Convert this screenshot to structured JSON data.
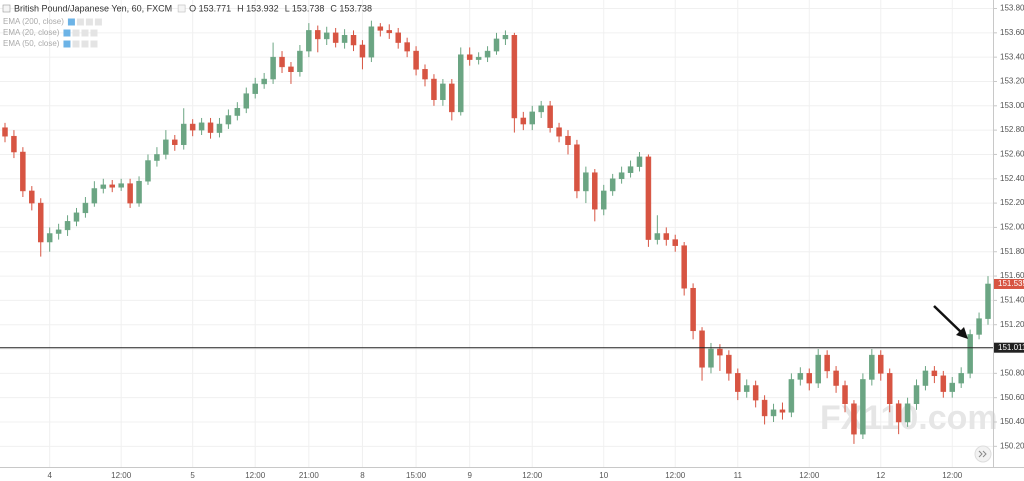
{
  "chart_data": {
    "type": "candlestick",
    "title": "British Pound/Japanese Yen, 60, FXCM",
    "header_values": [
      "O 153.771",
      "H 153.932",
      "L 153.738",
      "C 153.738"
    ],
    "indicators": [
      "EMA (200, close)",
      "EMA (20, close)",
      "EMA (50, close)"
    ],
    "watermark": "FX110.com",
    "up_color": "#6ba583",
    "down_color": "#d75442",
    "grid": true,
    "categories": [
      null,
      null,
      null,
      null,
      null,
      "4",
      null,
      null,
      null,
      null,
      null,
      null,
      null,
      "12:00",
      null,
      null,
      null,
      null,
      null,
      null,
      null,
      "5",
      null,
      null,
      null,
      null,
      null,
      null,
      "12:00",
      null,
      null,
      null,
      null,
      null,
      "21:00",
      null,
      null,
      null,
      null,
      null,
      "8",
      null,
      null,
      null,
      null,
      null,
      "15:00",
      null,
      null,
      null,
      null,
      null,
      "9",
      null,
      null,
      null,
      null,
      null,
      null,
      "12:00",
      null,
      null,
      null,
      null,
      null,
      null,
      null,
      "10",
      null,
      null,
      null,
      null,
      null,
      null,
      null,
      "12:00",
      null,
      null,
      null,
      null,
      null,
      null,
      "11",
      null,
      null,
      null,
      null,
      null,
      null,
      null,
      "12:00",
      null,
      null,
      null,
      null,
      null,
      null,
      null,
      "12",
      null,
      null,
      null,
      null,
      null,
      null,
      null,
      "12:00",
      null,
      null,
      null,
      null
    ],
    "ohlc": [
      [
        152.82,
        152.86,
        152.7,
        152.75
      ],
      [
        152.75,
        152.8,
        152.57,
        152.62
      ],
      [
        152.62,
        152.66,
        152.25,
        152.3
      ],
      [
        152.3,
        152.34,
        152.14,
        152.2
      ],
      [
        152.2,
        152.24,
        151.76,
        151.88
      ],
      [
        151.88,
        152.0,
        151.8,
        151.95
      ],
      [
        151.95,
        152.03,
        151.9,
        151.98
      ],
      [
        151.98,
        152.1,
        151.93,
        152.05
      ],
      [
        152.05,
        152.16,
        152.01,
        152.12
      ],
      [
        152.12,
        152.25,
        152.08,
        152.2
      ],
      [
        152.2,
        152.38,
        152.17,
        152.32
      ],
      [
        152.32,
        152.4,
        152.28,
        152.35
      ],
      [
        152.35,
        152.39,
        152.29,
        152.33
      ],
      [
        152.33,
        152.4,
        152.3,
        152.36
      ],
      [
        152.36,
        152.4,
        152.16,
        152.2
      ],
      [
        152.2,
        152.42,
        152.17,
        152.38
      ],
      [
        152.38,
        152.6,
        152.35,
        152.55
      ],
      [
        152.55,
        152.66,
        152.5,
        152.6
      ],
      [
        152.6,
        152.8,
        152.56,
        152.72
      ],
      [
        152.72,
        152.76,
        152.63,
        152.68
      ],
      [
        152.68,
        152.98,
        152.64,
        152.85
      ],
      [
        152.85,
        152.89,
        152.75,
        152.8
      ],
      [
        152.8,
        152.9,
        152.76,
        152.86
      ],
      [
        152.86,
        152.9,
        152.73,
        152.78
      ],
      [
        152.78,
        152.9,
        152.74,
        152.85
      ],
      [
        152.85,
        152.97,
        152.81,
        152.92
      ],
      [
        152.92,
        153.03,
        152.88,
        152.98
      ],
      [
        152.98,
        153.15,
        152.94,
        153.1
      ],
      [
        153.1,
        153.23,
        153.06,
        153.18
      ],
      [
        153.18,
        153.27,
        153.14,
        153.22
      ],
      [
        153.22,
        153.52,
        153.18,
        153.4
      ],
      [
        153.4,
        153.45,
        153.27,
        153.32
      ],
      [
        153.32,
        153.36,
        153.18,
        153.28
      ],
      [
        153.28,
        153.5,
        153.24,
        153.45
      ],
      [
        153.45,
        153.68,
        153.4,
        153.62
      ],
      [
        153.62,
        153.66,
        153.44,
        153.55
      ],
      [
        153.55,
        153.65,
        153.5,
        153.6
      ],
      [
        153.6,
        153.64,
        153.48,
        153.52
      ],
      [
        153.52,
        153.63,
        153.47,
        153.58
      ],
      [
        153.58,
        153.62,
        153.45,
        153.5
      ],
      [
        153.5,
        153.54,
        153.3,
        153.4
      ],
      [
        153.4,
        153.7,
        153.36,
        153.65
      ],
      [
        153.65,
        153.68,
        153.57,
        153.62
      ],
      [
        153.62,
        153.67,
        153.55,
        153.6
      ],
      [
        153.6,
        153.64,
        153.47,
        153.52
      ],
      [
        153.52,
        153.56,
        153.4,
        153.45
      ],
      [
        153.45,
        153.49,
        153.25,
        153.3
      ],
      [
        153.3,
        153.34,
        153.16,
        153.22
      ],
      [
        153.22,
        153.26,
        153.0,
        153.05
      ],
      [
        153.05,
        153.22,
        153.0,
        153.18
      ],
      [
        153.18,
        153.22,
        152.88,
        152.95
      ],
      [
        152.95,
        153.48,
        152.92,
        153.42
      ],
      [
        153.42,
        153.48,
        153.33,
        153.38
      ],
      [
        153.38,
        153.44,
        153.34,
        153.4
      ],
      [
        153.4,
        153.49,
        153.36,
        153.45
      ],
      [
        153.45,
        153.6,
        153.42,
        153.55
      ],
      [
        153.55,
        153.62,
        153.5,
        153.58
      ],
      [
        153.58,
        153.6,
        152.78,
        152.9
      ],
      [
        152.9,
        152.95,
        152.8,
        152.85
      ],
      [
        152.85,
        153.0,
        152.8,
        152.95
      ],
      [
        152.95,
        153.04,
        152.9,
        153.0
      ],
      [
        153.0,
        153.04,
        152.78,
        152.82
      ],
      [
        152.82,
        152.86,
        152.7,
        152.75
      ],
      [
        152.75,
        152.8,
        152.6,
        152.68
      ],
      [
        152.68,
        152.72,
        152.24,
        152.3
      ],
      [
        152.3,
        152.5,
        152.2,
        152.45
      ],
      [
        152.45,
        152.48,
        152.05,
        152.15
      ],
      [
        152.15,
        152.35,
        152.1,
        152.3
      ],
      [
        152.3,
        152.44,
        152.26,
        152.4
      ],
      [
        152.4,
        152.5,
        152.36,
        152.45
      ],
      [
        152.45,
        152.55,
        152.41,
        152.5
      ],
      [
        152.5,
        152.62,
        152.46,
        152.58
      ],
      [
        152.58,
        152.6,
        151.84,
        151.9
      ],
      [
        151.9,
        152.1,
        151.86,
        151.95
      ],
      [
        151.95,
        152.0,
        151.85,
        151.9
      ],
      [
        151.9,
        151.94,
        151.8,
        151.85
      ],
      [
        151.85,
        151.88,
        151.44,
        151.5
      ],
      [
        151.5,
        151.54,
        151.08,
        151.15
      ],
      [
        151.15,
        151.18,
        150.74,
        150.85
      ],
      [
        150.85,
        151.05,
        150.8,
        151.0
      ],
      [
        151.0,
        151.04,
        150.82,
        150.95
      ],
      [
        150.95,
        150.99,
        150.74,
        150.8
      ],
      [
        150.8,
        150.84,
        150.58,
        150.65
      ],
      [
        150.65,
        150.75,
        150.6,
        150.7
      ],
      [
        150.7,
        150.74,
        150.52,
        150.58
      ],
      [
        150.58,
        150.62,
        150.38,
        150.45
      ],
      [
        150.45,
        150.55,
        150.4,
        150.5
      ],
      [
        150.5,
        150.56,
        150.42,
        150.48
      ],
      [
        150.48,
        150.8,
        150.44,
        150.75
      ],
      [
        150.75,
        150.85,
        150.7,
        150.8
      ],
      [
        150.8,
        150.84,
        150.66,
        150.72
      ],
      [
        150.72,
        151.0,
        150.68,
        150.95
      ],
      [
        150.95,
        150.99,
        150.76,
        150.82
      ],
      [
        150.82,
        150.86,
        150.64,
        150.7
      ],
      [
        150.7,
        150.74,
        150.48,
        150.55
      ],
      [
        150.55,
        150.58,
        150.22,
        150.3
      ],
      [
        150.3,
        150.8,
        150.26,
        150.75
      ],
      [
        150.75,
        151.0,
        150.7,
        150.95
      ],
      [
        150.95,
        150.99,
        150.74,
        150.8
      ],
      [
        150.8,
        150.84,
        150.48,
        150.55
      ],
      [
        150.55,
        150.58,
        150.3,
        150.4
      ],
      [
        150.4,
        150.6,
        150.36,
        150.55
      ],
      [
        150.55,
        150.75,
        150.5,
        150.7
      ],
      [
        150.7,
        150.86,
        150.66,
        150.82
      ],
      [
        150.82,
        150.86,
        150.72,
        150.78
      ],
      [
        150.78,
        150.82,
        150.6,
        150.65
      ],
      [
        150.65,
        150.77,
        150.6,
        150.72
      ],
      [
        150.72,
        150.85,
        150.68,
        150.8
      ],
      [
        150.8,
        151.16,
        150.76,
        151.12
      ],
      [
        151.12,
        151.3,
        151.08,
        151.25
      ],
      [
        151.25,
        151.6,
        151.2,
        151.535
      ]
    ],
    "last_price": 151.535,
    "horizontal_line": 151.011,
    "ylim": [
      150.03,
      153.87
    ],
    "yticks": [
      {
        "value": 150.2,
        "label": "150.200"
      },
      {
        "value": 150.4,
        "label": "150.400"
      },
      {
        "value": 150.6,
        "label": "150.600"
      },
      {
        "value": 150.8,
        "label": "150.800"
      },
      {
        "value": 151.0,
        "label": "151.000"
      },
      {
        "value": 151.2,
        "label": "151.200"
      },
      {
        "value": 151.4,
        "label": "151.400"
      },
      {
        "value": 151.6,
        "label": "151.600"
      },
      {
        "value": 151.8,
        "label": "151.800"
      },
      {
        "value": 152.0,
        "label": "152.000"
      },
      {
        "value": 152.2,
        "label": "152.200"
      },
      {
        "value": 152.4,
        "label": "152.400"
      },
      {
        "value": 152.6,
        "label": "152.600"
      },
      {
        "value": 152.8,
        "label": "152.800"
      },
      {
        "value": 153.0,
        "label": "153.000"
      },
      {
        "value": 153.2,
        "label": "153.200"
      },
      {
        "value": 153.4,
        "label": "153.400"
      },
      {
        "value": 153.6,
        "label": "153.600"
      },
      {
        "value": 153.8,
        "label": "153.800"
      }
    ]
  }
}
